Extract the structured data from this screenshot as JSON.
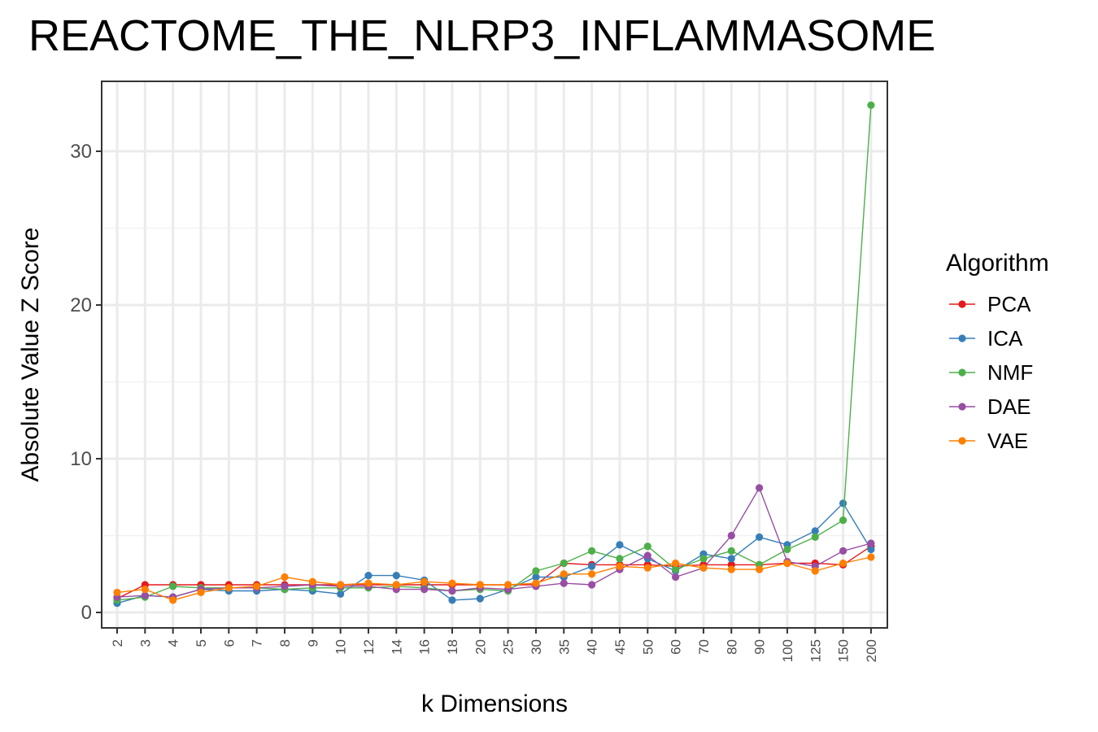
{
  "chart_data": {
    "type": "line",
    "title": "REACTOME_THE_NLRP3_INFLAMMASOME",
    "xlabel": "k Dimensions",
    "ylabel": "Absolute Value Z Score",
    "categories": [
      "2",
      "3",
      "4",
      "5",
      "6",
      "7",
      "8",
      "9",
      "10",
      "12",
      "14",
      "16",
      "18",
      "20",
      "25",
      "30",
      "35",
      "40",
      "45",
      "50",
      "60",
      "70",
      "80",
      "90",
      "100",
      "125",
      "150",
      "200"
    ],
    "yticks": [
      0,
      10,
      20,
      30
    ],
    "ylim": [
      -1,
      34.5
    ],
    "grid": true,
    "legend": {
      "title": "Algorithm",
      "position": "right"
    },
    "series": [
      {
        "name": "PCA",
        "color": "#E41A1C",
        "values": [
          0.9,
          1.8,
          1.8,
          1.8,
          1.8,
          1.8,
          1.8,
          1.8,
          1.8,
          1.8,
          1.8,
          1.8,
          1.8,
          1.8,
          1.8,
          1.8,
          3.2,
          3.1,
          3.1,
          3.1,
          3.0,
          3.1,
          3.1,
          3.1,
          3.2,
          3.2,
          3.1,
          4.3
        ]
      },
      {
        "name": "ICA",
        "color": "#377EB8",
        "values": [
          0.6,
          1.1,
          1.0,
          1.5,
          1.4,
          1.4,
          1.5,
          1.4,
          1.2,
          2.4,
          2.4,
          2.1,
          0.8,
          0.9,
          1.5,
          2.3,
          2.3,
          3.0,
          4.4,
          3.5,
          2.7,
          3.8,
          3.5,
          4.9,
          4.4,
          5.3,
          7.1,
          4.1
        ]
      },
      {
        "name": "NMF",
        "color": "#4DAF4A",
        "values": [
          0.8,
          1.0,
          1.7,
          1.6,
          1.6,
          1.6,
          1.5,
          1.6,
          1.6,
          1.6,
          1.7,
          1.6,
          1.4,
          1.5,
          1.4,
          2.7,
          3.2,
          4.0,
          3.5,
          4.3,
          2.8,
          3.5,
          4.0,
          3.1,
          4.1,
          4.9,
          6.0,
          33.0
        ]
      },
      {
        "name": "DAE",
        "color": "#984EA3",
        "values": [
          1.0,
          1.1,
          1.0,
          1.5,
          1.6,
          1.6,
          1.7,
          1.8,
          1.7,
          1.7,
          1.5,
          1.5,
          1.4,
          1.6,
          1.5,
          1.7,
          1.9,
          1.8,
          2.8,
          3.7,
          2.3,
          2.9,
          5.0,
          8.1,
          3.3,
          3.0,
          4.0,
          4.5
        ]
      },
      {
        "name": "VAE",
        "color": "#FF7F00",
        "values": [
          1.3,
          1.5,
          0.8,
          1.3,
          1.6,
          1.7,
          2.3,
          2.0,
          1.8,
          1.9,
          1.8,
          2.0,
          1.9,
          1.8,
          1.8,
          1.9,
          2.5,
          2.5,
          3.0,
          2.9,
          3.2,
          2.9,
          2.8,
          2.8,
          3.2,
          2.7,
          3.2,
          3.6
        ]
      }
    ]
  }
}
